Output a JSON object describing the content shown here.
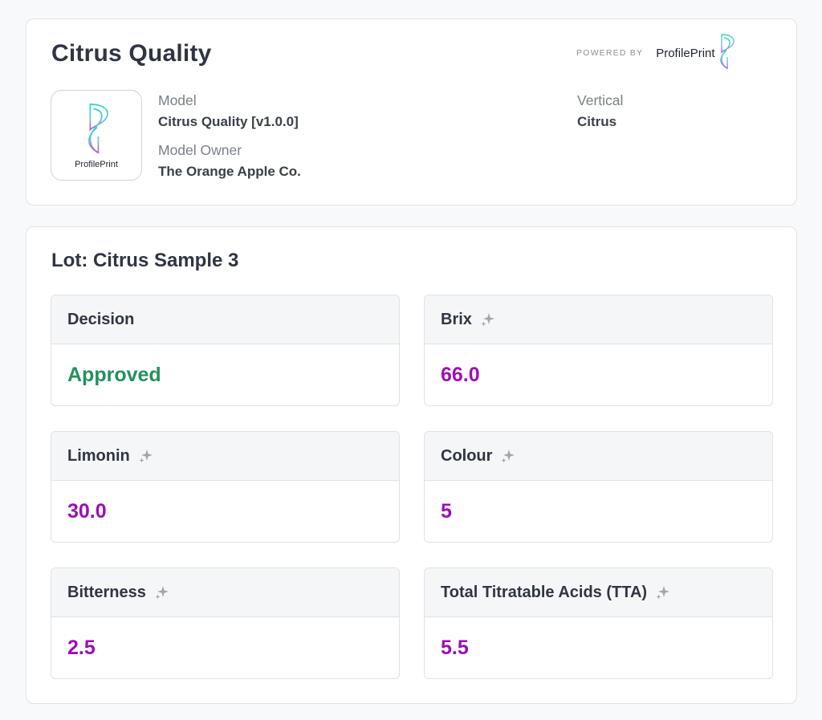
{
  "header": {
    "title": "Citrus Quality",
    "powered_by": "POWERED BY",
    "brand": "ProfilePrint",
    "logo_text": "ProfilePrint",
    "model_label": "Model",
    "model_value": "Citrus Quality [v1.0.0]",
    "owner_label": "Model Owner",
    "owner_value": "The Orange Apple Co.",
    "vertical_label": "Vertical",
    "vertical_value": "Citrus"
  },
  "lot": {
    "title": "Lot: Citrus Sample 3",
    "metrics": [
      {
        "label": "Decision",
        "value": "Approved",
        "ai_icon": false
      },
      {
        "label": "Brix",
        "value": "66.0",
        "ai_icon": true
      },
      {
        "label": "Limonin",
        "value": "30.0",
        "ai_icon": true
      },
      {
        "label": "Colour",
        "value": "5",
        "ai_icon": true
      },
      {
        "label": "Bitterness",
        "value": "2.5",
        "ai_icon": true
      },
      {
        "label": "Total Titratable Acids (TTA)",
        "value": "5.5",
        "ai_icon": true
      }
    ]
  },
  "colors": {
    "approved": "#23915a",
    "value": "#9b0fb6",
    "logo_teal": "#2dd4bf",
    "logo_purple": "#b45bd6",
    "sparkle": "#a0a5ae"
  },
  "icons": {
    "logo": "profileprint-logo-icon",
    "ai": "sparkle-icon"
  }
}
